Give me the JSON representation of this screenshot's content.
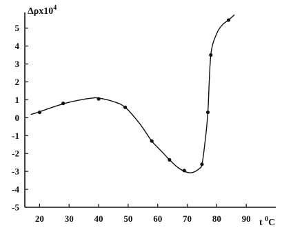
{
  "chart_data": {
    "type": "line",
    "title": "",
    "ylabel": {
      "base": "Δρx10",
      "exp": "4"
    },
    "xlabel": {
      "base": "t ",
      "exp": "0",
      "unit": "C"
    },
    "xlim": [
      15,
      100
    ],
    "ylim": [
      -5,
      5.8
    ],
    "xticks": [
      20,
      30,
      40,
      50,
      60,
      70,
      80,
      90
    ],
    "yticks": [
      5,
      4,
      3,
      2,
      1,
      0,
      -1,
      -2,
      -3,
      -4,
      -5
    ],
    "grid": false,
    "series": [
      {
        "points": [
          {
            "x": 20,
            "y": 0.3
          },
          {
            "x": 28,
            "y": 0.8
          },
          {
            "x": 40,
            "y": 1.05
          },
          {
            "x": 49,
            "y": 0.58
          },
          {
            "x": 58,
            "y": -1.3
          },
          {
            "x": 64,
            "y": -2.35
          },
          {
            "x": 69,
            "y": -2.95
          },
          {
            "x": 75,
            "y": -2.6
          },
          {
            "x": 77,
            "y": 0.3
          },
          {
            "x": 78,
            "y": 3.5
          },
          {
            "x": 84,
            "y": 5.45
          }
        ],
        "curve": [
          [
            17,
            0.18
          ],
          [
            20,
            0.33
          ],
          [
            25,
            0.62
          ],
          [
            30,
            0.86
          ],
          [
            35,
            1.03
          ],
          [
            38,
            1.1
          ],
          [
            40,
            1.1
          ],
          [
            45,
            0.9
          ],
          [
            49,
            0.58
          ],
          [
            54,
            -0.35
          ],
          [
            58,
            -1.3
          ],
          [
            62,
            -2.0
          ],
          [
            64,
            -2.35
          ],
          [
            67,
            -2.8
          ],
          [
            70,
            -3.05
          ],
          [
            72,
            -3.05
          ],
          [
            74,
            -2.85
          ],
          [
            75,
            -2.6
          ],
          [
            76,
            -1.4
          ],
          [
            77,
            0.3
          ],
          [
            78,
            3.5
          ],
          [
            80,
            4.7
          ],
          [
            82,
            5.2
          ],
          [
            84,
            5.45
          ],
          [
            86,
            5.75
          ]
        ]
      }
    ]
  }
}
